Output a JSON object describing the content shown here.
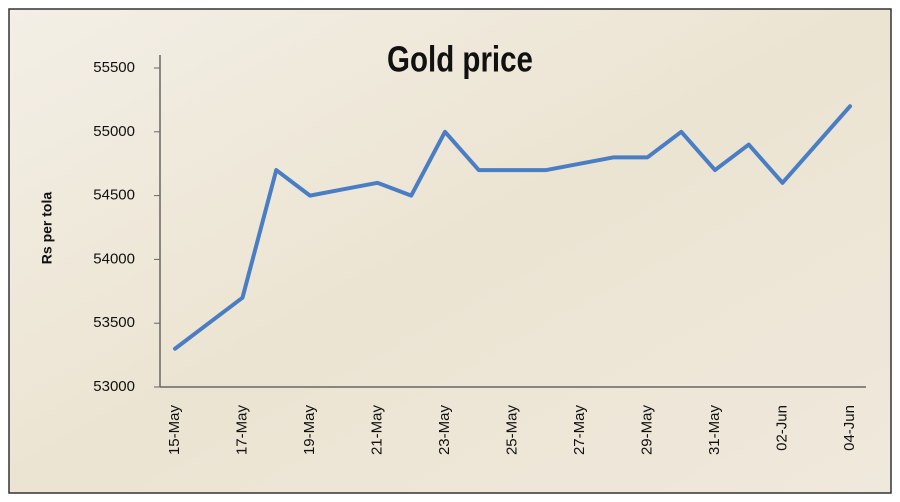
{
  "chart_data": {
    "type": "line",
    "title": "Gold price",
    "y_label": "Rs per tola",
    "categories": [
      "15-May",
      null,
      "17-May",
      null,
      "19-May",
      null,
      "21-May",
      null,
      "23-May",
      null,
      "25-May",
      null,
      "27-May",
      null,
      "29-May",
      null,
      "31-May",
      null,
      "02-Jun",
      null,
      "04-Jun"
    ],
    "values": [
      53300,
      53500,
      53700,
      54700,
      54500,
      54550,
      54600,
      54500,
      55000,
      54700,
      54700,
      54700,
      54750,
      54800,
      54800,
      55000,
      54700,
      54900,
      54600,
      54900,
      55200
    ],
    "color": "#4a7ec4",
    "ylim": [
      53000,
      55500
    ],
    "yticks": [
      53000,
      53500,
      54000,
      54500,
      55000,
      55500
    ],
    "grid": false
  }
}
